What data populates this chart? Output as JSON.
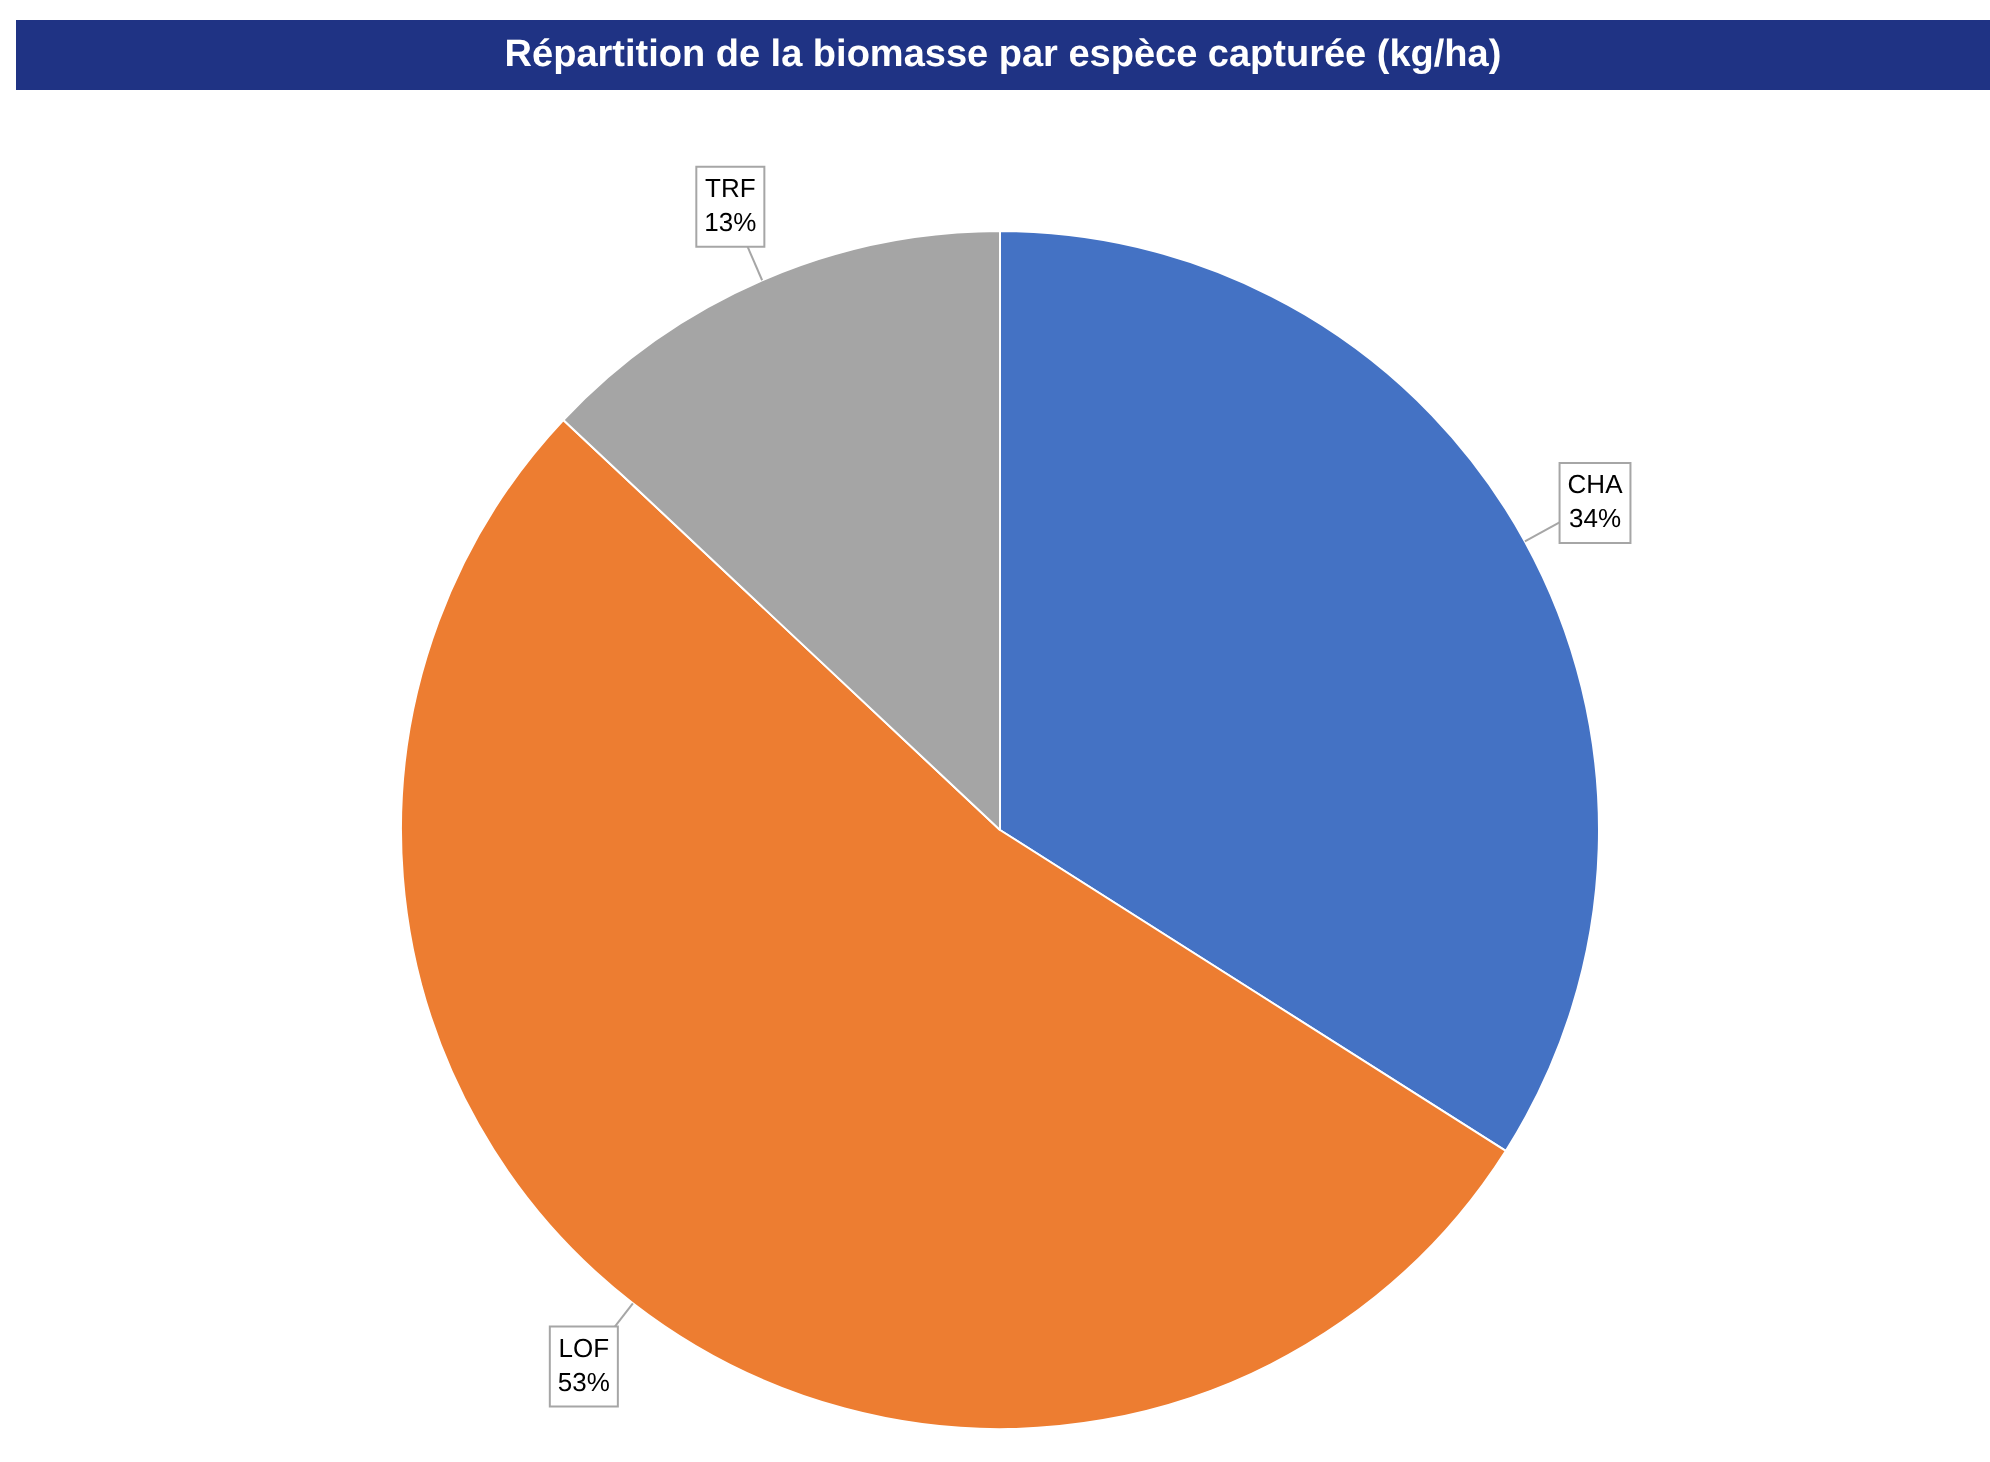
{
  "chart_data": {
    "type": "pie",
    "title": "Répartition de la biomasse par espèce capturée (kg/ha)",
    "categories": [
      "CHA",
      "LOF",
      "TRF"
    ],
    "values": [
      34,
      53,
      13
    ],
    "colors": [
      "#4472c4",
      "#ed7d31",
      "#a5a5a5"
    ],
    "value_labels": [
      "34%",
      "53%",
      "13%"
    ],
    "legend": false
  }
}
